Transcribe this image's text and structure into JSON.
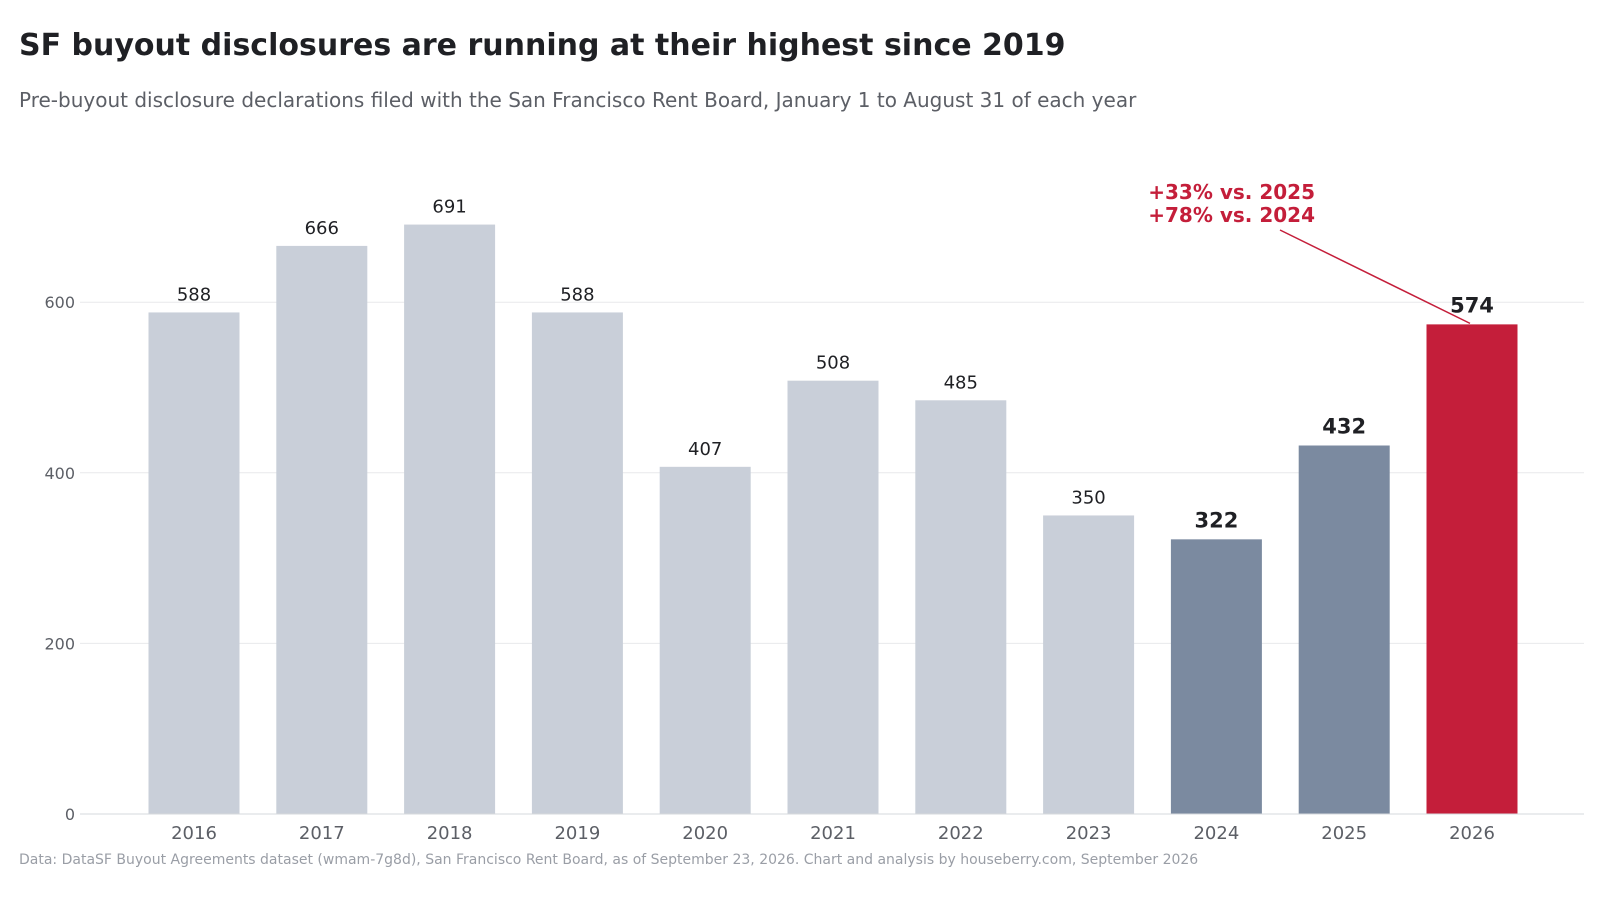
{
  "title": "SF buyout disclosures are running at their highest since 2019",
  "subtitle": "Pre-buyout disclosure declarations filed with the San Francisco Rent Board, January 1 to August 31 of each year",
  "footer": "Data: DataSF Buyout Agreements dataset (wmam-7g8d), San Francisco Rent Board, as of September 23, 2026. Chart and analysis by houseberry.com, September 2026",
  "colors": {
    "base_bar": "#c9cfd9",
    "recent_bar": "#7b8aa0",
    "highlight_bar": "#c41e3a",
    "annotation": "#c41e3a",
    "gridline": "#e8e9ec",
    "axis_text": "#5c5f66",
    "label_text": "#1f2024"
  },
  "chart_data": {
    "type": "bar",
    "categories": [
      "2016",
      "2017",
      "2018",
      "2019",
      "2020",
      "2021",
      "2022",
      "2023",
      "2024",
      "2025",
      "2026"
    ],
    "values": [
      588,
      666,
      691,
      588,
      407,
      508,
      485,
      350,
      322,
      432,
      574
    ],
    "bar_styles": [
      "base",
      "base",
      "base",
      "base",
      "base",
      "base",
      "base",
      "base",
      "recent",
      "recent",
      "highlight"
    ],
    "emphasized_labels": [
      "2024",
      "2025",
      "2026"
    ],
    "yticks": [
      0,
      200,
      400,
      600
    ],
    "ylim": [
      0,
      735
    ],
    "grid": true,
    "annotation": {
      "lines": [
        "+33% vs. 2025",
        "+78% vs. 2024"
      ],
      "target": "2026"
    },
    "xlabel": "",
    "ylabel": ""
  }
}
